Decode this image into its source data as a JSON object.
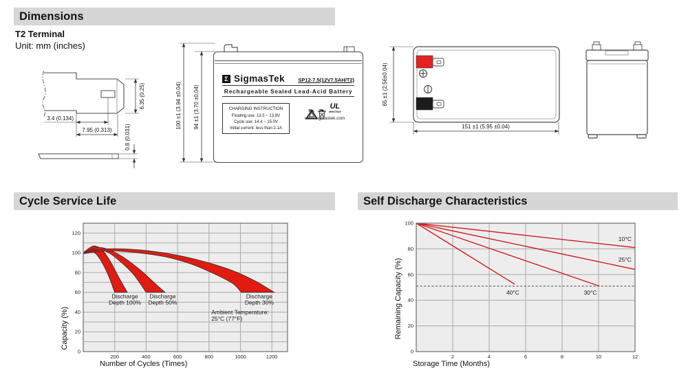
{
  "sections": {
    "dimensions": {
      "title": "Dimensions",
      "subtitle": "T2 Terminal",
      "unit": "Unit: mm (inches)"
    },
    "cycle": {
      "title": "Cycle Service Life"
    },
    "self_discharge": {
      "title": "Self Discharge Characteristics"
    }
  },
  "terminal_drawing": {
    "width_small": "3.4 (0.134)",
    "width_large": "7.95 (0.313)",
    "height": "6.35 (0.25)",
    "thickness": "0.8 (0.031)"
  },
  "front_view": {
    "dim_outer": "100 ±1 (3.94 ±0.04)",
    "dim_inner": "94 ±1 (3.70 ±0.04)",
    "logo_glyph": "Σ",
    "brand": "SigmasTek",
    "model": "SP12-7.5(12V7.5AH/T2)",
    "subtitle": "Rechargeable Sealed Lead-Acid Battery",
    "charging": {
      "title": "CHARGING INSTRUCTION",
      "lines": [
        "Floating use: 13.5 ~ 13.8V",
        "Cycle use: 14.4 ~ 15.0V",
        "Initial current: less than 2.1A"
      ]
    },
    "pb_recycle": "Pb.",
    "pb_bin": "Pb",
    "ul_mark": "UL",
    "ul_code": "MH47629",
    "website": "www.sigmastek.com"
  },
  "top_view": {
    "dim_height": "65 ±1 (2.56±0.04)",
    "dim_width": "151 ±1 (5.95 ±0.04)"
  },
  "colors": {
    "terminal_red": "#e42320",
    "terminal_black": "#1c1c1c",
    "header_bar": "#d6d6d6",
    "plot_bg": "#ededed",
    "grid": "#a9a9a9",
    "band_red": "#e01b12",
    "line_red": "#cf1d1d"
  },
  "chart_data": [
    {
      "type": "area",
      "title": "Cycle Service Life",
      "xlabel": "Number of Cycles (Times)",
      "ylabel": "Capacity (%)",
      "xlim": [
        0,
        1300
      ],
      "ylim": [
        0,
        130
      ],
      "x_ticks": [
        200,
        400,
        600,
        800,
        1000,
        1200
      ],
      "y_ticks": [
        0,
        20,
        40,
        60,
        80,
        100,
        120
      ],
      "x_grid_step": 200,
      "y_grid_step": 10,
      "grid": true,
      "legend_position": "none",
      "band_color": "#e01b12",
      "bands": [
        {
          "name": "Discharge Depth 100%",
          "label_lines": [
            "Discharge",
            "Depth 100%"
          ],
          "label_x": 265,
          "label_y": 54,
          "upper": [
            [
              0,
              100
            ],
            [
              40,
              105
            ],
            [
              75,
              107
            ],
            [
              120,
              103
            ],
            [
              170,
              92
            ],
            [
              220,
              77
            ],
            [
              280,
              60
            ]
          ],
          "lower": [
            [
              0,
              99
            ],
            [
              40,
              102
            ],
            [
              80,
              99
            ],
            [
              120,
              90
            ],
            [
              160,
              77
            ],
            [
              200,
              60
            ]
          ],
          "floor": 60
        },
        {
          "name": "Discharge Depth 50%",
          "label_lines": [
            "Discharge",
            "Depth 50%"
          ],
          "label_x": 505,
          "label_y": 54,
          "upper": [
            [
              0,
              100
            ],
            [
              80,
              105
            ],
            [
              150,
              104
            ],
            [
              250,
              96
            ],
            [
              360,
              83
            ],
            [
              450,
              70
            ],
            [
              520,
              60
            ]
          ],
          "lower": [
            [
              0,
              99
            ],
            [
              80,
              103
            ],
            [
              150,
              101
            ],
            [
              230,
              92
            ],
            [
              320,
              78
            ],
            [
              400,
              60
            ]
          ],
          "floor": 60
        },
        {
          "name": "Discharge Depth 30%",
          "label_lines": [
            "Discharge",
            "Depth 30%"
          ],
          "label_x": 1120,
          "label_y": 54,
          "upper": [
            [
              0,
              100
            ],
            [
              150,
              104
            ],
            [
              350,
              103
            ],
            [
              550,
              99
            ],
            [
              750,
              92
            ],
            [
              950,
              82
            ],
            [
              1100,
              71
            ],
            [
              1215,
              60
            ]
          ],
          "lower": [
            [
              0,
              99
            ],
            [
              150,
              102
            ],
            [
              350,
              100
            ],
            [
              520,
              96
            ],
            [
              680,
              89
            ],
            [
              830,
              79
            ],
            [
              950,
              69
            ],
            [
              1005,
              60
            ]
          ],
          "floor": 60
        }
      ],
      "annotation": {
        "lines": [
          "Ambient Temperature:",
          "25°C (77°F)"
        ],
        "x": 815,
        "y": 38
      }
    },
    {
      "type": "line",
      "title": "Self Discharge Characteristics",
      "xlabel": "Storage Time (Months)",
      "ylabel": "Remaining Capacity (%)",
      "xlim": [
        0,
        12
      ],
      "ylim": [
        0,
        100
      ],
      "x_ticks": [
        2,
        4,
        6,
        8,
        10,
        12
      ],
      "y_ticks": [
        0,
        20,
        40,
        60,
        80,
        100
      ],
      "x_grid_step": 2,
      "y_grid_step": 20,
      "grid": true,
      "legend_position": "inline-labels",
      "dashed_line_y": 51,
      "line_color": "#cf1d1d",
      "series": [
        {
          "name": "10°C",
          "points": [
            [
              0,
              100
            ],
            [
              12,
              81
            ]
          ],
          "label_x": 11.45,
          "label_y": 86
        },
        {
          "name": "25°C",
          "points": [
            [
              0,
              100
            ],
            [
              12,
              64
            ]
          ],
          "label_x": 11.45,
          "label_y": 70
        },
        {
          "name": "30°C",
          "points": [
            [
              0,
              100
            ],
            [
              10.05,
              51
            ]
          ],
          "label_x": 9.55,
          "label_y": 44.5
        },
        {
          "name": "40°C",
          "points": [
            [
              0,
              100
            ],
            [
              5.4,
              52.5
            ]
          ],
          "label_x": 5.3,
          "label_y": 44.5
        }
      ]
    }
  ]
}
